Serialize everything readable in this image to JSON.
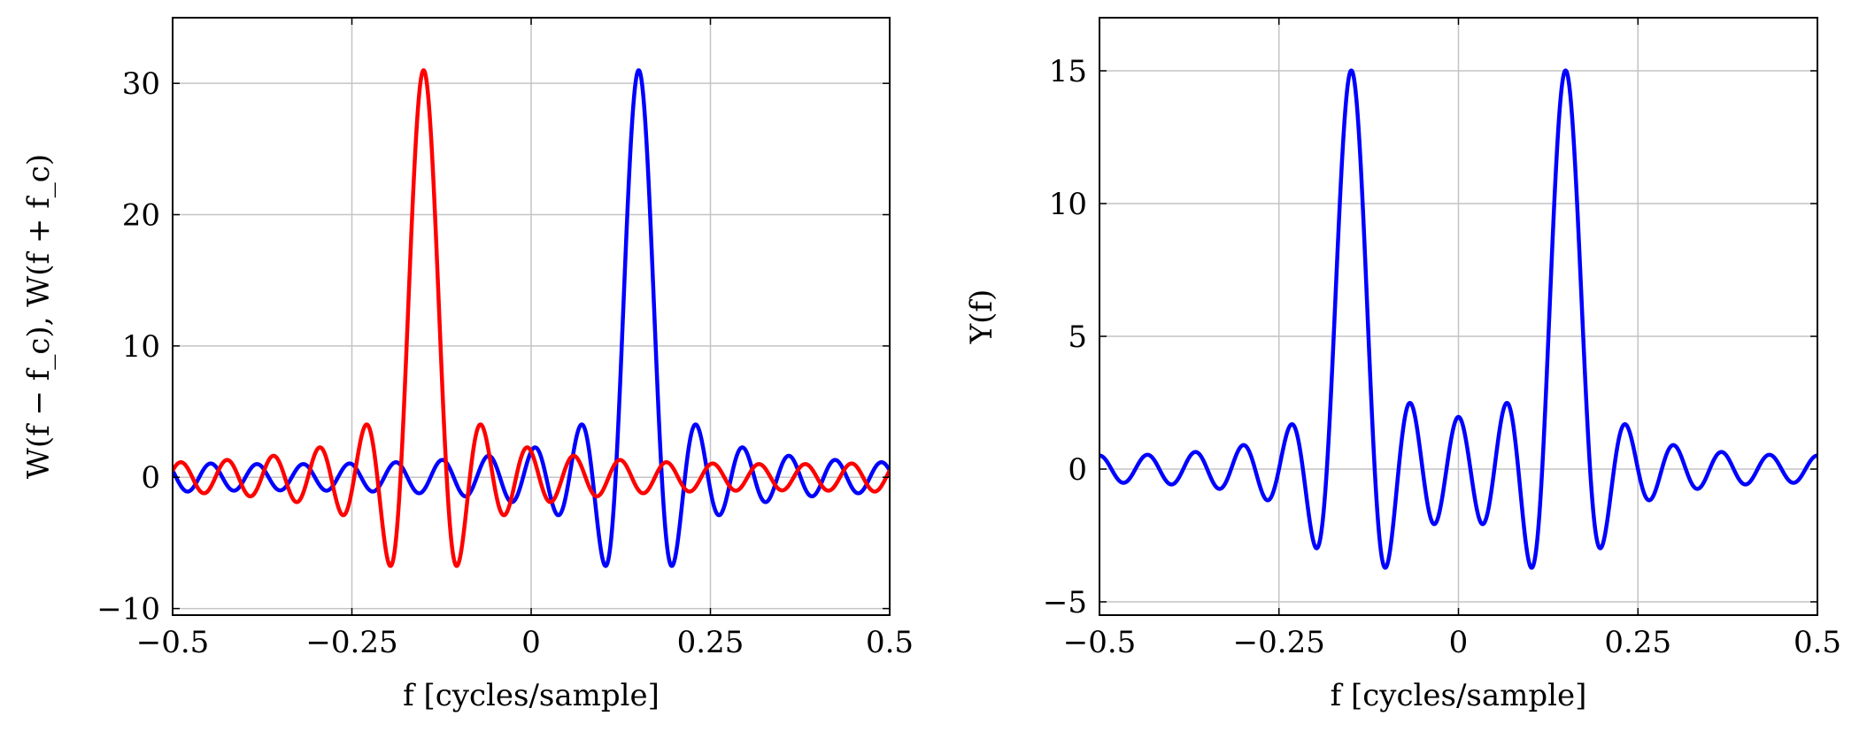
{
  "chart_data": [
    {
      "type": "line",
      "xlabel": "f [cycles/sample]",
      "ylabel": "W(f − f_c), W(f + f_c)",
      "xlim": [
        -0.5,
        0.5
      ],
      "ylim": [
        -10.5,
        35
      ],
      "xticks": [
        -0.5,
        -0.25,
        0,
        0.25,
        0.5
      ],
      "xtick_labels": [
        "−0.5",
        "−0.25",
        "0",
        "0.25",
        "0.5"
      ],
      "yticks": [
        -10,
        0,
        10,
        20,
        30
      ],
      "ytick_labels": [
        "−10",
        "0",
        "10",
        "20",
        "30"
      ],
      "grid": true,
      "dirichlet_N": 31,
      "series": [
        {
          "name": "W(f − f_c)",
          "color": "#0000ff",
          "center": 0.15,
          "peak": 31,
          "x_range": [
            -0.5,
            0.5
          ]
        },
        {
          "name": "W(f + f_c)",
          "color": "#ff0000",
          "center": -0.15,
          "peak": 31,
          "x_range": [
            -0.5,
            0.5
          ]
        }
      ]
    },
    {
      "type": "line",
      "xlabel": "f [cycles/sample]",
      "ylabel": "Y(f)",
      "xlim": [
        -0.5,
        0.5
      ],
      "ylim": [
        -5.5,
        17
      ],
      "xticks": [
        -0.5,
        -0.25,
        0,
        0.25,
        0.5
      ],
      "xtick_labels": [
        "−0.5",
        "−0.25",
        "0",
        "0.25",
        "0.5"
      ],
      "yticks": [
        -5,
        0,
        5,
        10,
        15
      ],
      "ytick_labels": [
        "−5",
        "0",
        "5",
        "10",
        "15"
      ],
      "grid": true,
      "dirichlet_N": 31,
      "series": [
        {
          "name": "Y(f)",
          "color": "#0000ff",
          "centers": [
            0.15,
            -0.15
          ],
          "weight": 0.5,
          "peak": 15,
          "x_range": [
            -0.5,
            0.5
          ]
        }
      ]
    }
  ]
}
